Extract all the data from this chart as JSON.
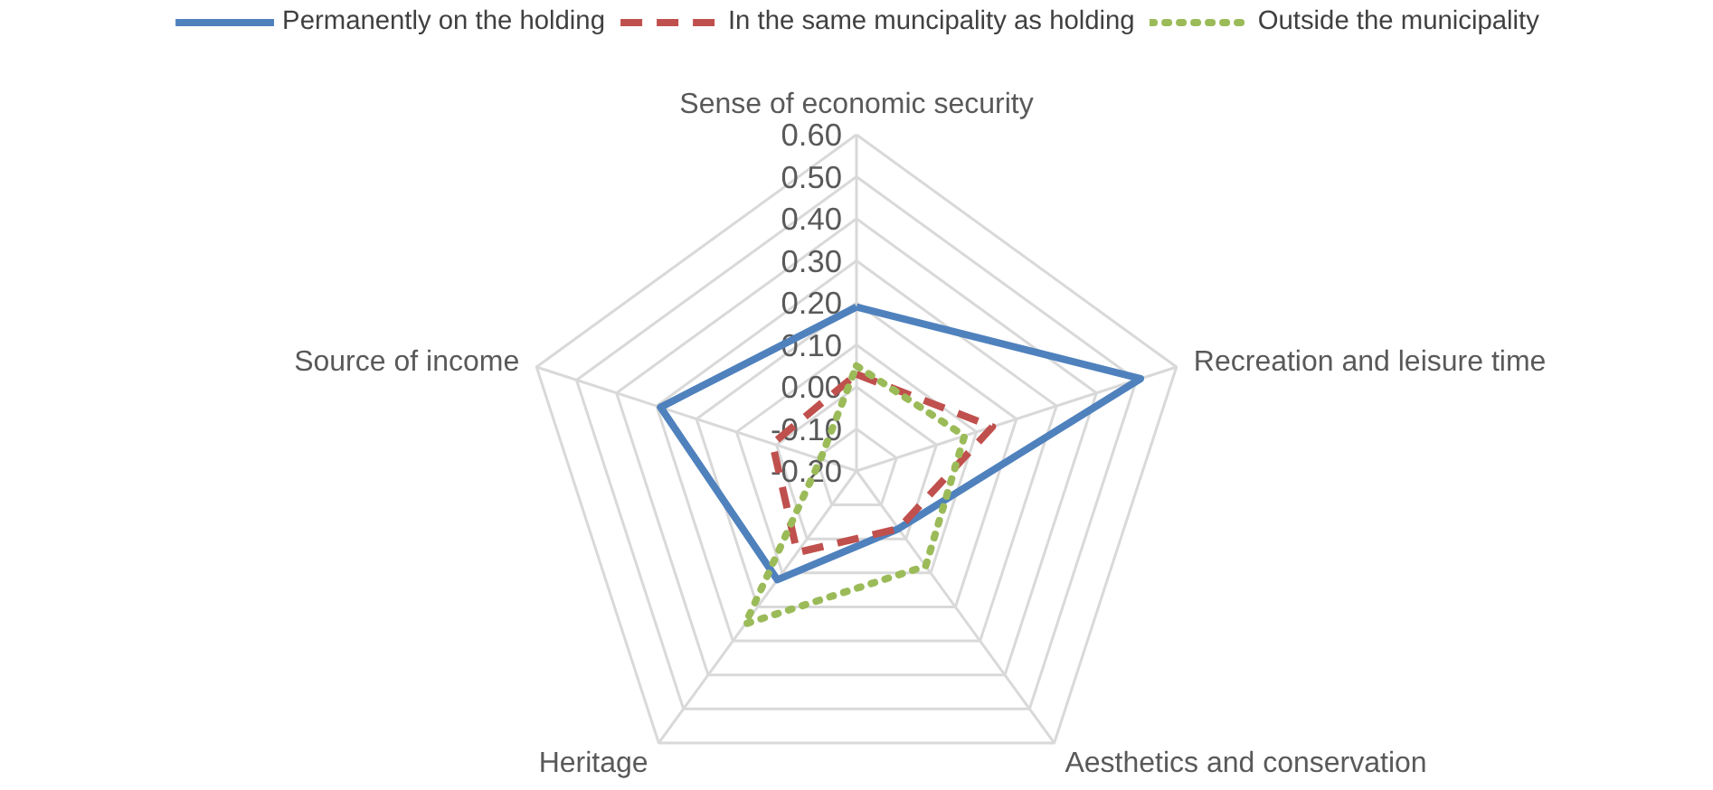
{
  "chart_data": {
    "type": "radar",
    "categories": [
      "Sense of economic security",
      "Recreation and leisure time",
      "Aesthetics and conservation",
      "Heritage",
      "Source of income"
    ],
    "series": [
      {
        "name": "Permanently on the holding",
        "color": "#4f81bd",
        "line_style": "solid",
        "values": [
          0.19,
          0.51,
          -0.03,
          0.12,
          0.29
        ]
      },
      {
        "name": "In the same muncipality as holding",
        "color": "#c0504d",
        "line_style": "dashed",
        "values": [
          0.03,
          0.14,
          -0.03,
          0.04,
          0.01
        ]
      },
      {
        "name": "Outside the municipality",
        "color": "#9bbb59",
        "line_style": "dotted",
        "values": [
          0.05,
          0.07,
          0.08,
          0.25,
          -0.11
        ]
      }
    ],
    "ylim": [
      -0.2,
      0.6
    ],
    "yticks": [
      {
        "value": 0.6,
        "label": "0.60"
      },
      {
        "value": 0.5,
        "label": "0.50"
      },
      {
        "value": 0.4,
        "label": "0.40"
      },
      {
        "value": 0.3,
        "label": "0.30"
      },
      {
        "value": 0.2,
        "label": "0.20"
      },
      {
        "value": 0.1,
        "label": "0.10"
      },
      {
        "value": 0.0,
        "label": "0.00"
      },
      {
        "value": -0.1,
        "label": "-0.10"
      },
      {
        "value": -0.2,
        "label": "-0.20"
      }
    ],
    "grid": true,
    "legend": "top",
    "marker": "none"
  }
}
